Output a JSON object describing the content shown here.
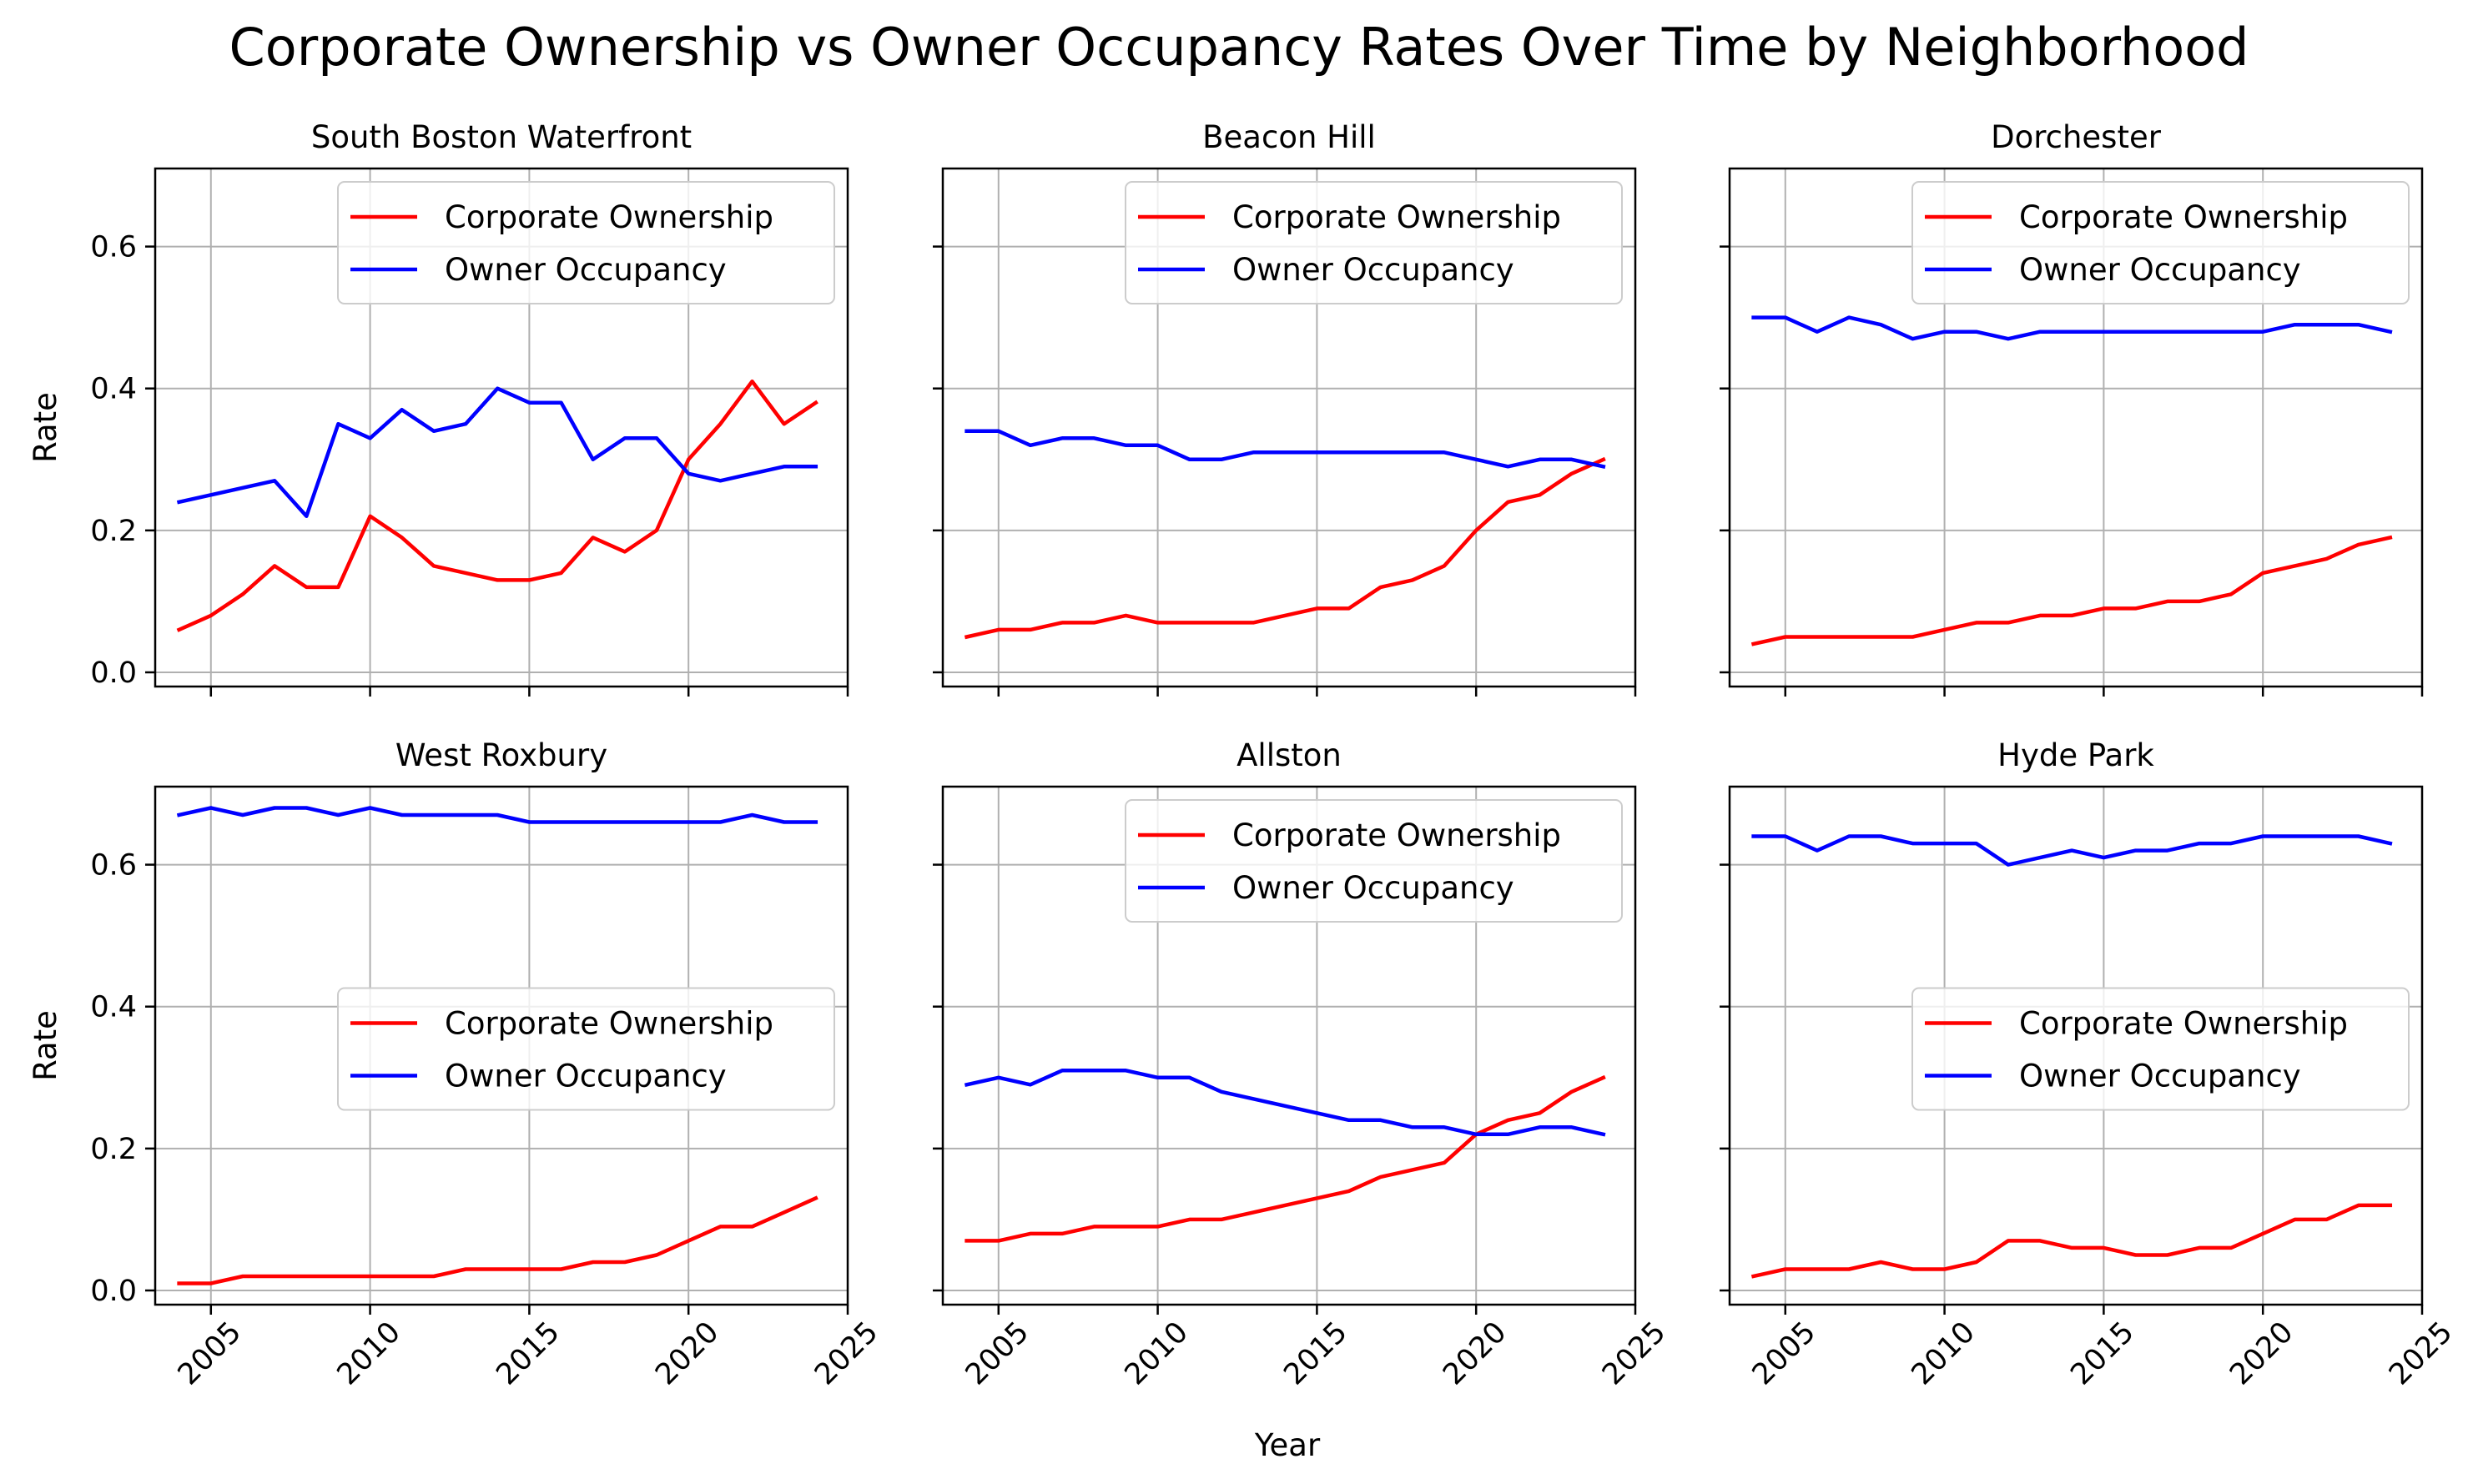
{
  "figure": {
    "title": "Corporate Ownership vs Owner Occupancy Rates Over Time by Neighborhood",
    "xlabel": "Year",
    "ylabel": "Rate"
  },
  "chart_data": [
    {
      "type": "line",
      "title": "South Boston Waterfront",
      "xlabel": "",
      "ylabel": "Rate",
      "xlim": [
        2003.25,
        2025
      ],
      "ylim": [
        -0.02,
        0.71
      ],
      "xticks": [
        "2005",
        "2010",
        "2015",
        "2020",
        "2025"
      ],
      "yticks": [
        "0.0",
        "0.2",
        "0.4",
        "0.6"
      ],
      "grid": true,
      "legend_position": "top-right",
      "x": [
        2004,
        2005,
        2006,
        2007,
        2008,
        2009,
        2010,
        2011,
        2012,
        2013,
        2014,
        2015,
        2016,
        2017,
        2018,
        2019,
        2020,
        2021,
        2022,
        2023,
        2024
      ],
      "series": [
        {
          "name": "Corporate Ownership",
          "color": "#ff0000",
          "values": [
            0.06,
            0.08,
            0.11,
            0.15,
            0.12,
            0.12,
            0.22,
            0.19,
            0.15,
            0.14,
            0.13,
            0.13,
            0.14,
            0.19,
            0.17,
            0.2,
            0.3,
            0.35,
            0.41,
            0.35,
            0.38
          ]
        },
        {
          "name": "Owner Occupancy",
          "color": "#0000ff",
          "values": [
            0.24,
            0.25,
            0.26,
            0.27,
            0.22,
            0.35,
            0.33,
            0.37,
            0.34,
            0.35,
            0.4,
            0.38,
            0.38,
            0.3,
            0.33,
            0.33,
            0.28,
            0.27,
            0.28,
            0.29,
            0.29
          ]
        }
      ]
    },
    {
      "type": "line",
      "title": "Beacon Hill",
      "xlabel": "",
      "ylabel": "",
      "xlim": [
        2003.25,
        2025
      ],
      "ylim": [
        -0.02,
        0.71
      ],
      "xticks": [
        "2005",
        "2010",
        "2015",
        "2020",
        "2025"
      ],
      "yticks": [
        "0.0",
        "0.2",
        "0.4",
        "0.6"
      ],
      "grid": true,
      "legend_position": "top-right",
      "x": [
        2004,
        2005,
        2006,
        2007,
        2008,
        2009,
        2010,
        2011,
        2012,
        2013,
        2014,
        2015,
        2016,
        2017,
        2018,
        2019,
        2020,
        2021,
        2022,
        2023,
        2024
      ],
      "series": [
        {
          "name": "Corporate Ownership",
          "color": "#ff0000",
          "values": [
            0.05,
            0.06,
            0.06,
            0.07,
            0.07,
            0.08,
            0.07,
            0.07,
            0.07,
            0.07,
            0.08,
            0.09,
            0.09,
            0.12,
            0.13,
            0.15,
            0.2,
            0.24,
            0.25,
            0.28,
            0.3
          ]
        },
        {
          "name": "Owner Occupancy",
          "color": "#0000ff",
          "values": [
            0.34,
            0.34,
            0.32,
            0.33,
            0.33,
            0.32,
            0.32,
            0.3,
            0.3,
            0.31,
            0.31,
            0.31,
            0.31,
            0.31,
            0.31,
            0.31,
            0.3,
            0.29,
            0.3,
            0.3,
            0.29
          ]
        }
      ]
    },
    {
      "type": "line",
      "title": "Dorchester",
      "xlabel": "",
      "ylabel": "",
      "xlim": [
        2003.25,
        2025
      ],
      "ylim": [
        -0.02,
        0.71
      ],
      "xticks": [
        "2005",
        "2010",
        "2015",
        "2020",
        "2025"
      ],
      "yticks": [
        "0.0",
        "0.2",
        "0.4",
        "0.6"
      ],
      "grid": true,
      "legend_position": "top-right",
      "x": [
        2004,
        2005,
        2006,
        2007,
        2008,
        2009,
        2010,
        2011,
        2012,
        2013,
        2014,
        2015,
        2016,
        2017,
        2018,
        2019,
        2020,
        2021,
        2022,
        2023,
        2024
      ],
      "series": [
        {
          "name": "Corporate Ownership",
          "color": "#ff0000",
          "values": [
            0.04,
            0.05,
            0.05,
            0.05,
            0.05,
            0.05,
            0.06,
            0.07,
            0.07,
            0.08,
            0.08,
            0.09,
            0.09,
            0.1,
            0.1,
            0.11,
            0.14,
            0.15,
            0.16,
            0.18,
            0.19
          ]
        },
        {
          "name": "Owner Occupancy",
          "color": "#0000ff",
          "values": [
            0.5,
            0.5,
            0.48,
            0.5,
            0.49,
            0.47,
            0.48,
            0.48,
            0.47,
            0.48,
            0.48,
            0.48,
            0.48,
            0.48,
            0.48,
            0.48,
            0.48,
            0.49,
            0.49,
            0.49,
            0.48
          ]
        }
      ]
    },
    {
      "type": "line",
      "title": "West Roxbury",
      "xlabel": "",
      "ylabel": "Rate",
      "xlim": [
        2003.25,
        2025
      ],
      "ylim": [
        -0.02,
        0.71
      ],
      "xticks": [
        "2005",
        "2010",
        "2015",
        "2020",
        "2025"
      ],
      "yticks": [
        "0.0",
        "0.2",
        "0.4",
        "0.6"
      ],
      "grid": true,
      "legend_position": "center-right",
      "x": [
        2004,
        2005,
        2006,
        2007,
        2008,
        2009,
        2010,
        2011,
        2012,
        2013,
        2014,
        2015,
        2016,
        2017,
        2018,
        2019,
        2020,
        2021,
        2022,
        2023,
        2024
      ],
      "series": [
        {
          "name": "Corporate Ownership",
          "color": "#ff0000",
          "values": [
            0.01,
            0.01,
            0.02,
            0.02,
            0.02,
            0.02,
            0.02,
            0.02,
            0.02,
            0.03,
            0.03,
            0.03,
            0.03,
            0.04,
            0.04,
            0.05,
            0.07,
            0.09,
            0.09,
            0.11,
            0.13
          ]
        },
        {
          "name": "Owner Occupancy",
          "color": "#0000ff",
          "values": [
            0.67,
            0.68,
            0.67,
            0.68,
            0.68,
            0.67,
            0.68,
            0.67,
            0.67,
            0.67,
            0.67,
            0.66,
            0.66,
            0.66,
            0.66,
            0.66,
            0.66,
            0.66,
            0.67,
            0.66,
            0.66
          ]
        }
      ]
    },
    {
      "type": "line",
      "title": "Allston",
      "xlabel": "",
      "ylabel": "",
      "xlim": [
        2003.25,
        2025
      ],
      "ylim": [
        -0.02,
        0.71
      ],
      "xticks": [
        "2005",
        "2010",
        "2015",
        "2020",
        "2025"
      ],
      "yticks": [
        "0.0",
        "0.2",
        "0.4",
        "0.6"
      ],
      "grid": true,
      "legend_position": "top-right",
      "x": [
        2004,
        2005,
        2006,
        2007,
        2008,
        2009,
        2010,
        2011,
        2012,
        2013,
        2014,
        2015,
        2016,
        2017,
        2018,
        2019,
        2020,
        2021,
        2022,
        2023,
        2024
      ],
      "series": [
        {
          "name": "Corporate Ownership",
          "color": "#ff0000",
          "values": [
            0.07,
            0.07,
            0.08,
            0.08,
            0.09,
            0.09,
            0.09,
            0.1,
            0.1,
            0.11,
            0.12,
            0.13,
            0.14,
            0.16,
            0.17,
            0.18,
            0.22,
            0.24,
            0.25,
            0.28,
            0.3
          ]
        },
        {
          "name": "Owner Occupancy",
          "color": "#0000ff",
          "values": [
            0.29,
            0.3,
            0.29,
            0.31,
            0.31,
            0.31,
            0.3,
            0.3,
            0.28,
            0.27,
            0.26,
            0.25,
            0.24,
            0.24,
            0.23,
            0.23,
            0.22,
            0.22,
            0.23,
            0.23,
            0.22
          ]
        }
      ]
    },
    {
      "type": "line",
      "title": "Hyde Park",
      "xlabel": "",
      "ylabel": "",
      "xlim": [
        2003.25,
        2025
      ],
      "ylim": [
        -0.02,
        0.71
      ],
      "xticks": [
        "2005",
        "2010",
        "2015",
        "2020",
        "2025"
      ],
      "yticks": [
        "0.0",
        "0.2",
        "0.4",
        "0.6"
      ],
      "grid": true,
      "legend_position": "center-right",
      "x": [
        2004,
        2005,
        2006,
        2007,
        2008,
        2009,
        2010,
        2011,
        2012,
        2013,
        2014,
        2015,
        2016,
        2017,
        2018,
        2019,
        2020,
        2021,
        2022,
        2023,
        2024
      ],
      "series": [
        {
          "name": "Corporate Ownership",
          "color": "#ff0000",
          "values": [
            0.02,
            0.03,
            0.03,
            0.03,
            0.04,
            0.03,
            0.03,
            0.04,
            0.07,
            0.07,
            0.06,
            0.06,
            0.05,
            0.05,
            0.06,
            0.06,
            0.08,
            0.1,
            0.1,
            0.12,
            0.12
          ]
        },
        {
          "name": "Owner Occupancy",
          "color": "#0000ff",
          "values": [
            0.64,
            0.64,
            0.62,
            0.64,
            0.64,
            0.63,
            0.63,
            0.63,
            0.6,
            0.61,
            0.62,
            0.61,
            0.62,
            0.62,
            0.63,
            0.63,
            0.64,
            0.64,
            0.64,
            0.64,
            0.63
          ]
        }
      ]
    }
  ]
}
